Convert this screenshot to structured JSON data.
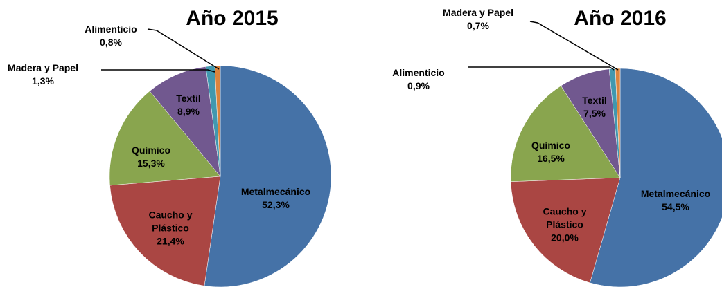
{
  "chart_data": [
    {
      "type": "pie",
      "title": "Año 2015",
      "categories": [
        "Metalmecánico",
        "Caucho y Plástico",
        "Químico",
        "Textil",
        "Madera y Papel",
        "Alimenticio"
      ],
      "values": [
        52.3,
        21.4,
        15.3,
        8.9,
        1.3,
        0.8
      ],
      "value_labels": [
        "52,3%",
        "21,4%",
        "15,3%",
        "8,9%",
        "1,3%",
        "0,8%"
      ],
      "colors": [
        "#4572A7",
        "#AA4643",
        "#89A54E",
        "#71588F",
        "#4198AF",
        "#DB843D"
      ]
    },
    {
      "type": "pie",
      "title": "Año 2016",
      "categories": [
        "Metalmecánico",
        "Caucho y Plástico",
        "Químico",
        "Textil",
        "Alimenticio",
        "Madera y Papel"
      ],
      "values": [
        54.5,
        20.0,
        16.5,
        7.5,
        0.9,
        0.7
      ],
      "value_labels": [
        "54,5%",
        "20,0%",
        "16,5%",
        "7,5%",
        "0,9%",
        "0,7%"
      ],
      "colors": [
        "#4572A7",
        "#AA4643",
        "#89A54E",
        "#71588F",
        "#4198AF",
        "#DB843D"
      ]
    }
  ]
}
